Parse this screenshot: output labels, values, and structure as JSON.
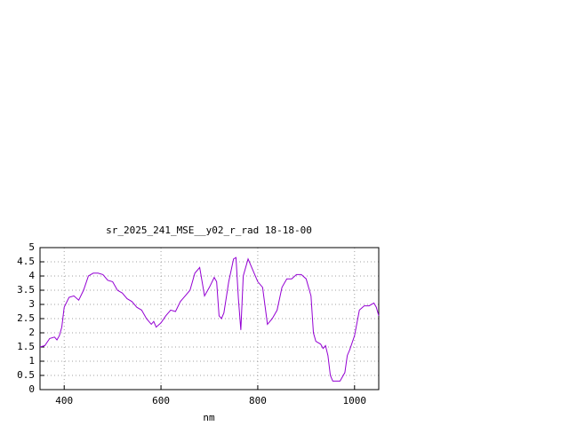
{
  "chart_data": {
    "type": "line",
    "title": "sr_2025_241_MSE__y02_r_rad 18-18-00",
    "x_label": "nm",
    "x": [
      350,
      360,
      370,
      380,
      385,
      390,
      395,
      400,
      410,
      420,
      430,
      440,
      450,
      460,
      470,
      480,
      490,
      500,
      510,
      520,
      530,
      540,
      550,
      560,
      570,
      580,
      585,
      590,
      600,
      610,
      620,
      630,
      640,
      650,
      660,
      670,
      680,
      690,
      700,
      710,
      715,
      720,
      725,
      730,
      740,
      750,
      755,
      760,
      765,
      770,
      780,
      790,
      800,
      810,
      820,
      830,
      840,
      850,
      860,
      870,
      880,
      890,
      900,
      910,
      915,
      920,
      930,
      935,
      940,
      945,
      950,
      955,
      970,
      980,
      985,
      990,
      1000,
      1010,
      1020,
      1030,
      1040,
      1045,
      1050
    ],
    "series": [
      {
        "color": "#9400d3",
        "values": [
          1.5,
          1.55,
          1.8,
          1.85,
          1.75,
          1.9,
          2.2,
          2.9,
          3.25,
          3.3,
          3.15,
          3.5,
          4.0,
          4.1,
          4.1,
          4.05,
          3.85,
          3.8,
          3.5,
          3.4,
          3.2,
          3.1,
          2.9,
          2.8,
          2.5,
          2.3,
          2.4,
          2.2,
          2.35,
          2.6,
          2.8,
          2.75,
          3.1,
          3.3,
          3.5,
          4.1,
          4.3,
          3.3,
          3.6,
          3.95,
          3.8,
          2.6,
          2.5,
          2.7,
          3.8,
          4.6,
          4.65,
          3.2,
          2.1,
          4.0,
          4.6,
          4.2,
          3.8,
          3.6,
          2.3,
          2.5,
          2.8,
          3.6,
          3.9,
          3.9,
          4.05,
          4.05,
          3.9,
          3.3,
          2.0,
          1.7,
          1.6,
          1.45,
          1.55,
          1.2,
          0.5,
          0.3,
          0.3,
          0.6,
          1.2,
          1.4,
          1.9,
          2.8,
          2.95,
          2.95,
          3.05,
          2.9,
          2.6
        ]
      }
    ],
    "xlim": [
      350,
      1050
    ],
    "ylim": [
      0,
      5
    ],
    "xticks": [
      400,
      600,
      800,
      1000
    ],
    "yticks": [
      0,
      0.5,
      1,
      1.5,
      2,
      2.5,
      3,
      3.5,
      4,
      4.5,
      5
    ],
    "grid": true
  }
}
